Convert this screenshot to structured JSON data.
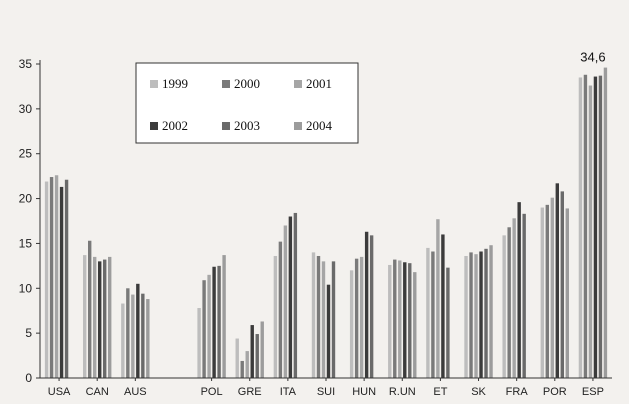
{
  "chart_data": {
    "type": "bar",
    "title": "",
    "xlabel": "",
    "ylabel": "",
    "ylim": [
      0,
      35
    ],
    "yticks": [
      0,
      5,
      10,
      15,
      20,
      25,
      30,
      35
    ],
    "legend_position": "top-center",
    "categories": [
      "USA",
      "CAN",
      "AUS",
      "",
      "POL",
      "GRE",
      "ITA",
      "SUI",
      "HUN",
      "R.UN",
      "ET",
      "SK",
      "FRA",
      "POR",
      "ESP"
    ],
    "series": [
      {
        "name": "1999",
        "color": "#bdbdbd",
        "values": [
          21.9,
          13.7,
          8.3,
          null,
          7.8,
          4.4,
          13.6,
          14.0,
          12.0,
          12.6,
          14.5,
          13.6,
          15.9,
          19.0,
          33.5
        ]
      },
      {
        "name": "2000",
        "color": "#7a7a7a",
        "values": [
          22.4,
          15.3,
          10.0,
          null,
          10.9,
          1.9,
          15.2,
          13.6,
          13.3,
          13.2,
          14.1,
          14.0,
          16.8,
          19.3,
          33.8
        ]
      },
      {
        "name": "2001",
        "color": "#a6a6a6",
        "values": [
          22.6,
          13.5,
          9.3,
          null,
          11.5,
          3.0,
          17.0,
          13.0,
          13.5,
          13.1,
          17.7,
          13.8,
          17.8,
          20.1,
          32.6
        ]
      },
      {
        "name": "2002",
        "color": "#3b3b3b",
        "values": [
          21.3,
          13.0,
          10.5,
          null,
          12.4,
          5.9,
          18.0,
          10.4,
          16.3,
          12.9,
          16.0,
          14.1,
          19.6,
          21.7,
          33.6
        ]
      },
      {
        "name": "2003",
        "color": "#6a6a6a",
        "values": [
          22.1,
          13.2,
          9.4,
          null,
          12.5,
          4.9,
          18.4,
          13.0,
          15.9,
          12.8,
          12.3,
          14.4,
          18.3,
          20.8,
          33.7
        ]
      },
      {
        "name": "2004",
        "color": "#9c9c9c",
        "values": [
          null,
          13.5,
          8.8,
          null,
          13.7,
          6.3,
          null,
          null,
          null,
          11.8,
          null,
          14.8,
          null,
          18.9,
          34.6
        ]
      }
    ],
    "annotations": [
      {
        "text": "34,6",
        "category": "ESP"
      }
    ]
  }
}
